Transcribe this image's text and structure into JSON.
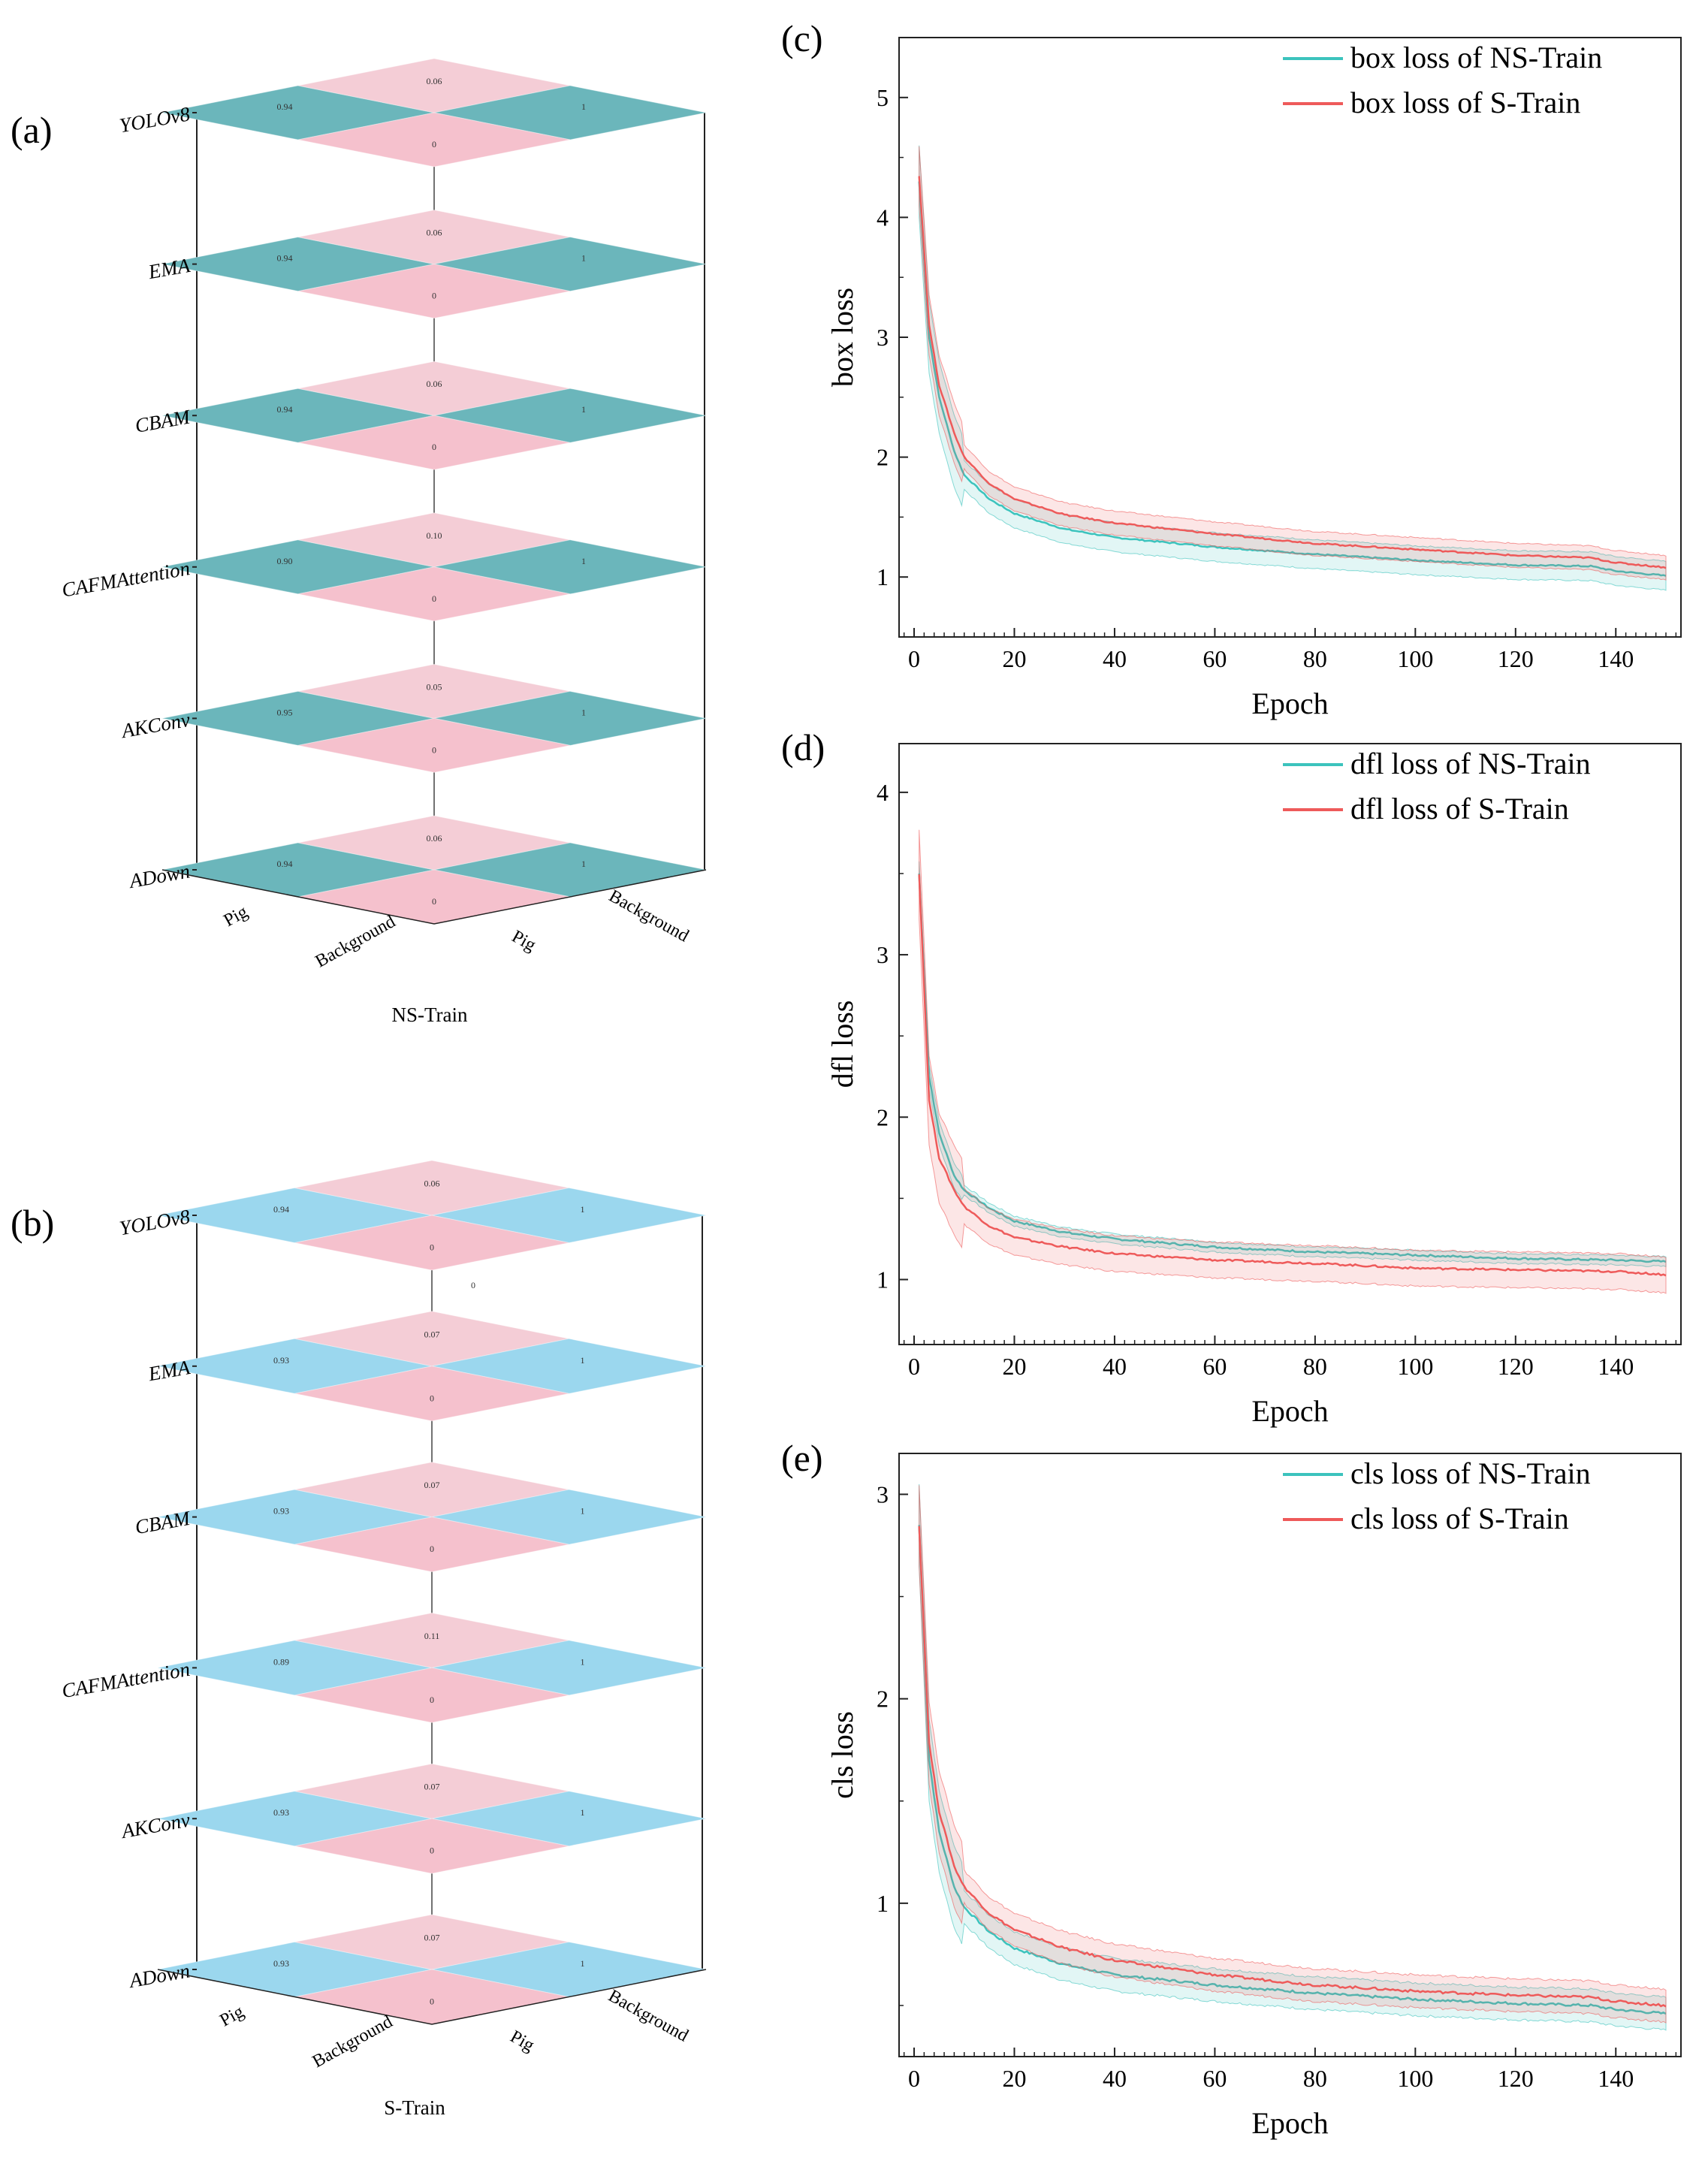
{
  "panels": {
    "a": {
      "label": "(a)",
      "axis_title": "NS-Train",
      "colors": {
        "diag": "#6bb6bb",
        "off": "#f5c1cd",
        "off_top": "#f4cdd6"
      },
      "row_labels": [
        "Pig",
        "Background"
      ],
      "col_labels": [
        "Pig",
        "Background"
      ]
    },
    "b": {
      "label": "(b)",
      "axis_title": "S-Train",
      "colors": {
        "diag": "#9bd7ee",
        "off": "#f5c1cd",
        "off_top": "#f4cdd6"
      },
      "row_labels": [
        "Pig",
        "Background"
      ],
      "col_labels": [
        "Pig",
        "Background"
      ]
    },
    "c": {
      "label": "(c)",
      "xlabel": "Epoch",
      "ylabel": "box loss",
      "legend": [
        "box loss of NS-Train",
        "box loss of S-Train"
      ]
    },
    "d": {
      "label": "(d)",
      "xlabel": "Epoch",
      "ylabel": "dfl loss",
      "legend": [
        "dfl loss of NS-Train",
        "dfl loss of S-Train"
      ]
    },
    "e": {
      "label": "(e)",
      "xlabel": "Epoch",
      "ylabel": "cls loss",
      "legend": [
        "cls loss of NS-Train",
        "cls loss of S-Train"
      ]
    }
  },
  "chart_data": [
    {
      "type": "heatmap",
      "panel": "a",
      "layers": [
        "ADown",
        "AKConv",
        "CAFMAttention",
        "CBAM",
        "EMA",
        "YOLOv8"
      ],
      "cells": [
        {
          "layer": "YOLOv8",
          "pp": "0.94",
          "pb": "0.06",
          "bb": "1",
          "bp": "0"
        },
        {
          "layer": "EMA",
          "pp": "0.94",
          "pb": "0.06",
          "bb": "1",
          "bp": "0"
        },
        {
          "layer": "CBAM",
          "pp": "0.94",
          "pb": "0.06",
          "bb": "1",
          "bp": "0"
        },
        {
          "layer": "CAFMAttention",
          "pp": "0.90",
          "pb": "0.10",
          "bb": "1",
          "bp": "0"
        },
        {
          "layer": "AKConv",
          "pp": "0.95",
          "pb": "0.05",
          "bb": "1",
          "bp": "0"
        },
        {
          "layer": "ADown",
          "pp": "0.94",
          "pb": "0.06",
          "bb": "1",
          "bp": "0"
        }
      ]
    },
    {
      "type": "heatmap",
      "panel": "b",
      "layers": [
        "ADown",
        "AKConv",
        "CAFMAttention",
        "CBAM",
        "EMA",
        "YOLOv8"
      ],
      "cells": [
        {
          "layer": "YOLOv8",
          "pp": "0.94",
          "pb": "0.06",
          "bb": "1",
          "bp": "0",
          "extra": "0"
        },
        {
          "layer": "EMA",
          "pp": "0.93",
          "pb": "0.07",
          "bb": "1",
          "bp": "0"
        },
        {
          "layer": "CBAM",
          "pp": "0.93",
          "pb": "0.07",
          "bb": "1",
          "bp": "0"
        },
        {
          "layer": "CAFMAttention",
          "pp": "0.89",
          "pb": "0.11",
          "bb": "1",
          "bp": "0"
        },
        {
          "layer": "AKConv",
          "pp": "0.93",
          "pb": "0.07",
          "bb": "1",
          "bp": "0"
        },
        {
          "layer": "ADown",
          "pp": "0.93",
          "pb": "0.07",
          "bb": "1",
          "bp": "0"
        }
      ]
    },
    {
      "type": "line",
      "panel": "c",
      "xlim": [
        -3,
        153
      ],
      "ylim": [
        0.5,
        5.5
      ],
      "xticks": [
        0,
        20,
        40,
        60,
        80,
        100,
        120,
        140
      ],
      "yticks": [
        1,
        2,
        3,
        4,
        5
      ],
      "band": [
        0.12,
        0.1
      ],
      "series": [
        {
          "name": "box loss of NS-Train",
          "color": "#3cc3bd",
          "x": [
            1,
            3,
            5,
            8,
            10,
            15,
            20,
            30,
            40,
            60,
            80,
            100,
            120,
            135,
            140,
            150
          ],
          "y": [
            4.3,
            3.0,
            2.5,
            2.05,
            1.85,
            1.65,
            1.53,
            1.4,
            1.33,
            1.25,
            1.19,
            1.14,
            1.1,
            1.09,
            1.05,
            1.01
          ]
        },
        {
          "name": "box loss of S-Train",
          "color": "#ee5a5a",
          "x": [
            1,
            3,
            5,
            8,
            10,
            15,
            20,
            30,
            40,
            60,
            80,
            100,
            120,
            135,
            140,
            150
          ],
          "y": [
            4.35,
            3.1,
            2.6,
            2.2,
            2.0,
            1.78,
            1.65,
            1.52,
            1.45,
            1.36,
            1.28,
            1.23,
            1.18,
            1.16,
            1.12,
            1.08
          ]
        }
      ]
    },
    {
      "type": "line",
      "panel": "d",
      "xlim": [
        -3,
        153
      ],
      "ylim": [
        0.6,
        4.3
      ],
      "xticks": [
        0,
        20,
        40,
        60,
        80,
        100,
        120,
        140
      ],
      "yticks": [
        1,
        2,
        3,
        4
      ],
      "band": [
        0.03,
        0.11
      ],
      "series": [
        {
          "name": "dfl loss of NS-Train",
          "color": "#3cc3bd",
          "x": [
            1,
            3,
            5,
            8,
            10,
            15,
            20,
            30,
            40,
            60,
            80,
            100,
            120,
            140,
            150
          ],
          "y": [
            3.5,
            2.25,
            1.9,
            1.64,
            1.55,
            1.44,
            1.36,
            1.29,
            1.25,
            1.2,
            1.17,
            1.15,
            1.13,
            1.12,
            1.11
          ]
        },
        {
          "name": "dfl loss of S-Train",
          "color": "#ee5a5a",
          "x": [
            1,
            3,
            5,
            8,
            10,
            15,
            20,
            30,
            40,
            60,
            80,
            100,
            120,
            140,
            150
          ],
          "y": [
            3.5,
            2.1,
            1.75,
            1.55,
            1.45,
            1.33,
            1.26,
            1.2,
            1.16,
            1.12,
            1.1,
            1.07,
            1.06,
            1.05,
            1.03
          ]
        }
      ]
    },
    {
      "type": "line",
      "panel": "e",
      "xlim": [
        -3,
        153
      ],
      "ylim": [
        0.25,
        3.2
      ],
      "xticks": [
        0,
        20,
        40,
        60,
        80,
        100,
        120,
        140
      ],
      "yticks": [
        1,
        2,
        3
      ],
      "band": [
        0.08,
        0.08
      ],
      "series": [
        {
          "name": "cls loss of NS-Train",
          "color": "#3cc3bd",
          "x": [
            1,
            3,
            5,
            8,
            10,
            15,
            20,
            30,
            40,
            60,
            80,
            100,
            120,
            135,
            140,
            150
          ],
          "y": [
            2.85,
            1.7,
            1.35,
            1.08,
            0.98,
            0.86,
            0.78,
            0.7,
            0.65,
            0.6,
            0.56,
            0.53,
            0.51,
            0.5,
            0.48,
            0.46
          ]
        },
        {
          "name": "cls loss of S-Train",
          "color": "#ee5a5a",
          "x": [
            1,
            3,
            5,
            8,
            10,
            15,
            20,
            30,
            40,
            60,
            80,
            100,
            120,
            135,
            140,
            150
          ],
          "y": [
            2.85,
            1.78,
            1.45,
            1.18,
            1.08,
            0.95,
            0.87,
            0.78,
            0.72,
            0.65,
            0.6,
            0.57,
            0.55,
            0.54,
            0.52,
            0.5
          ]
        }
      ]
    }
  ]
}
